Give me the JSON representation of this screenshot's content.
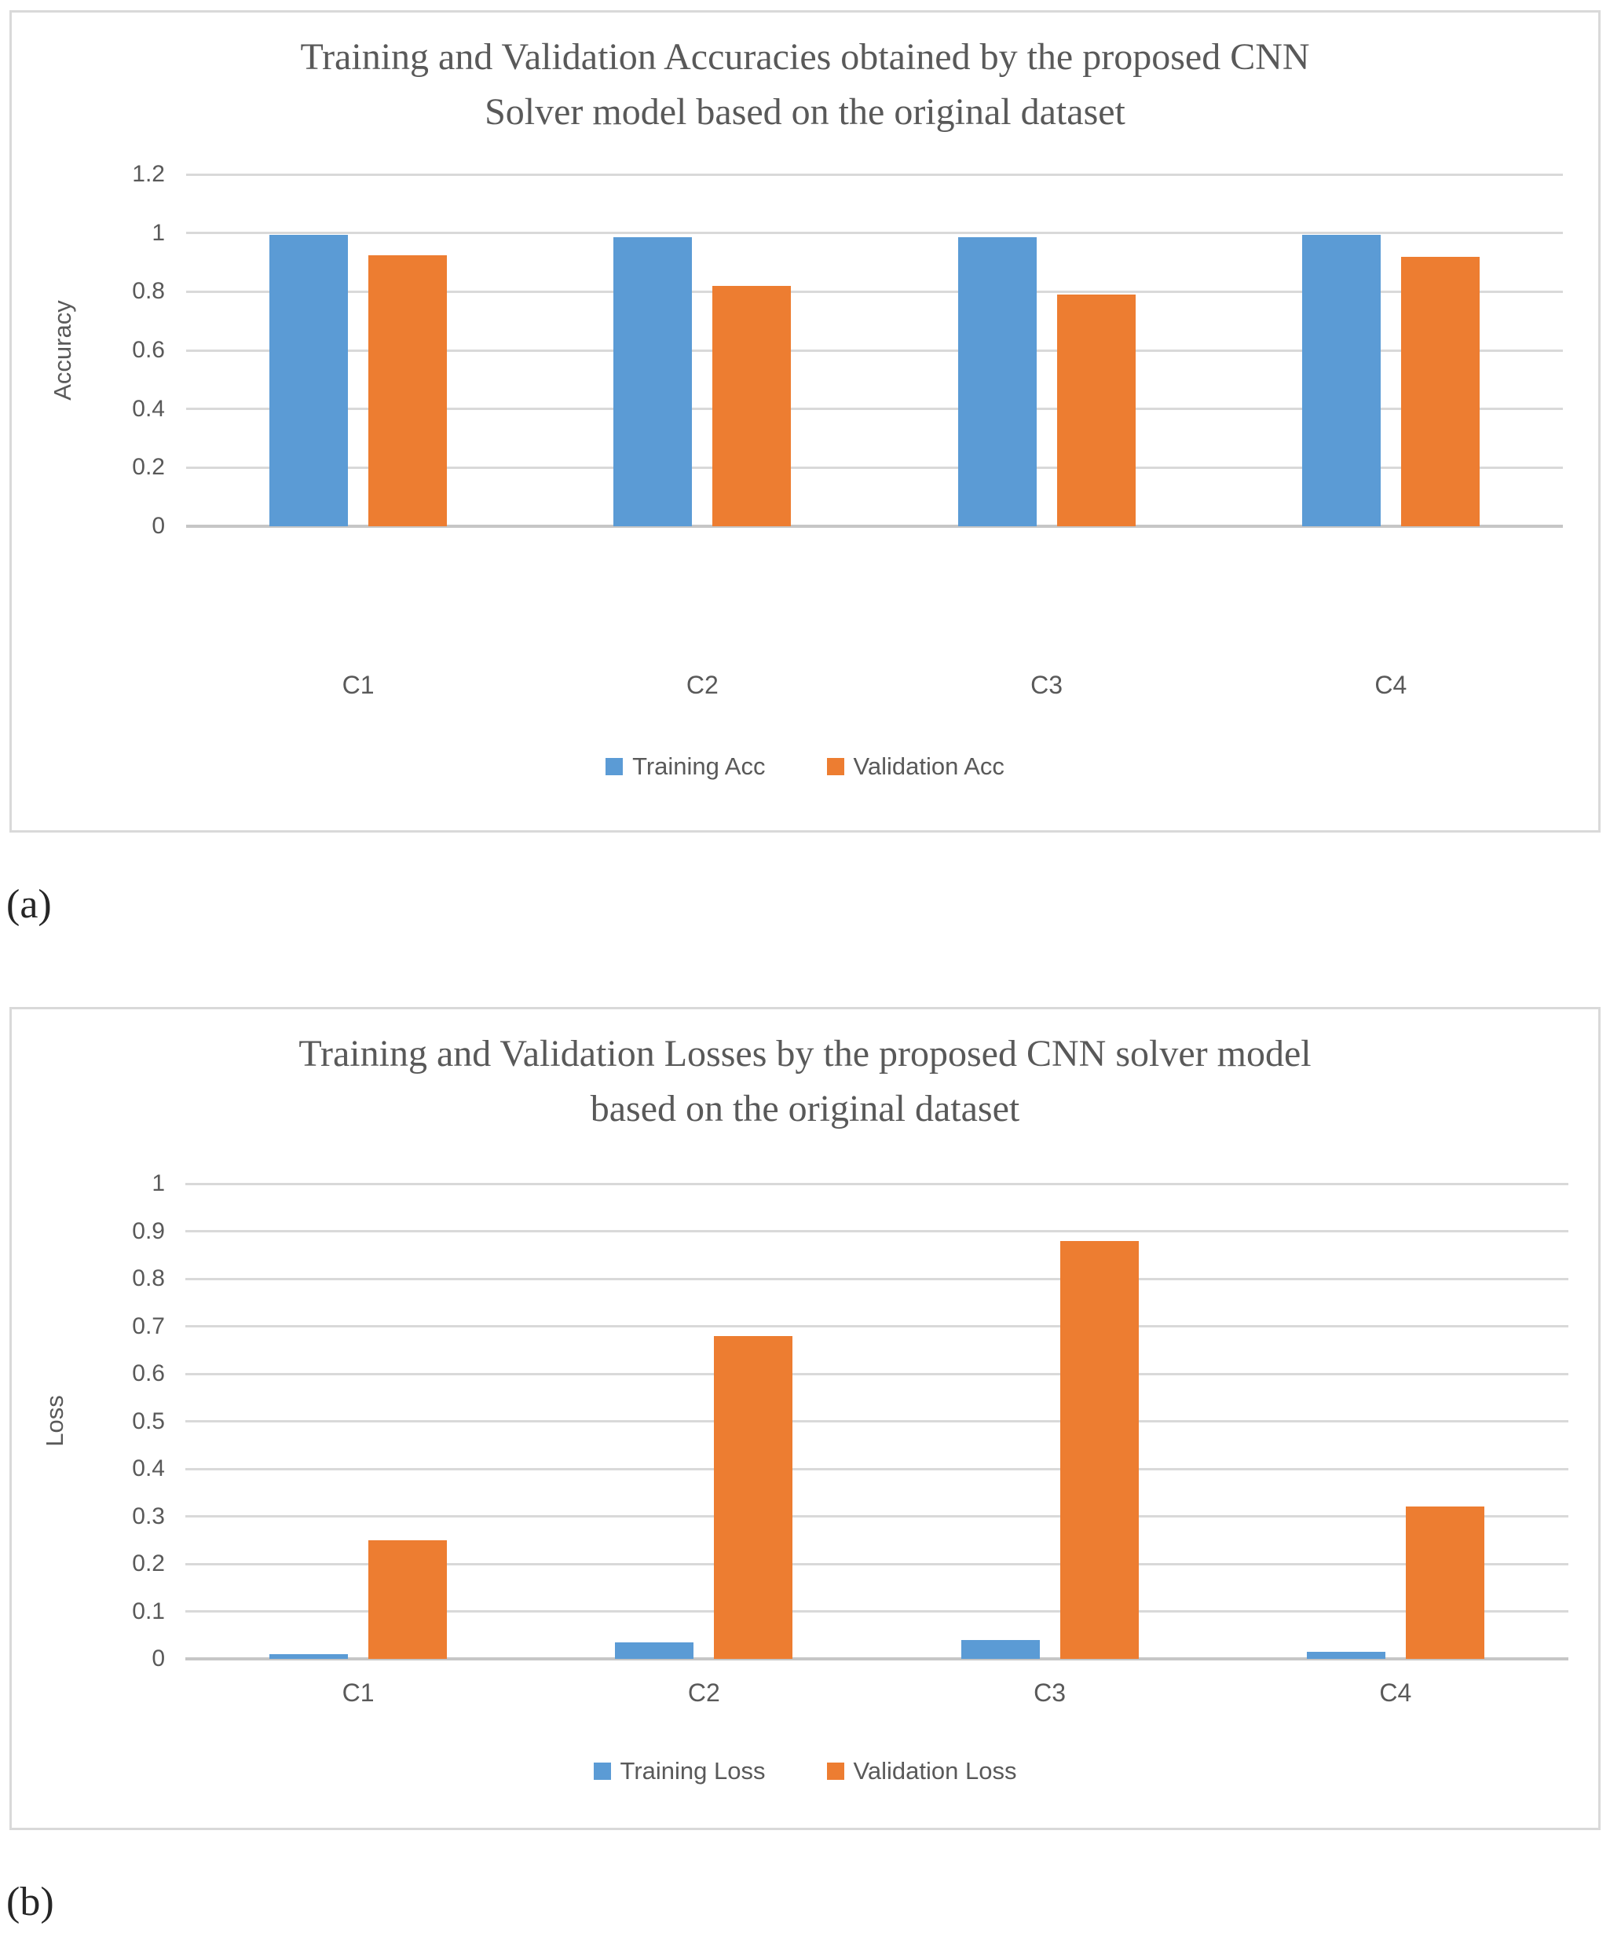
{
  "figure_labels": {
    "a": "(a)",
    "b": "(b)"
  },
  "colors": {
    "training": "#5B9BD5",
    "validation": "#ED7D31",
    "gridline": "#D9D9D9",
    "zero_line": "#C6C6C6",
    "text": "#595959",
    "panel_border": "#D9D9D9"
  },
  "chart_data": [
    {
      "type": "bar",
      "title": "Training and Validation Accuracies obtained by the proposed CNN Solver model based on the original dataset",
      "title_lines": [
        "Training and Validation Accuracies obtained by the proposed CNN",
        "Solver model based on the original dataset"
      ],
      "xlabel": "",
      "ylabel": "Accuracy",
      "ylim": [
        0,
        1.2
      ],
      "ytick_step": 0.2,
      "ytick_labels": [
        "1.2",
        "1",
        "0.8",
        "0.6",
        "0.4",
        "0.2",
        "0"
      ],
      "grid": true,
      "legend_position": "bottom",
      "categories": [
        "C1",
        "C2",
        "C3",
        "C4"
      ],
      "series": [
        {
          "name": "Training Acc",
          "color_key": "training",
          "values": [
            0.995,
            0.985,
            0.985,
            0.995
          ]
        },
        {
          "name": "Validation Acc",
          "color_key": "validation",
          "values": [
            0.925,
            0.82,
            0.79,
            0.92
          ]
        }
      ]
    },
    {
      "type": "bar",
      "title": "Training and Validation Losses by the proposed CNN solver model based on the original dataset",
      "title_lines": [
        "Training and Validation Losses by the proposed CNN solver model",
        "based on the original dataset"
      ],
      "xlabel": "",
      "ylabel": "Loss",
      "ylim": [
        0,
        1
      ],
      "ytick_step": 0.1,
      "ytick_labels": [
        "1",
        "0.9",
        "0.8",
        "0.7",
        "0.6",
        "0.5",
        "0.4",
        "0.3",
        "0.2",
        "0.1",
        "0"
      ],
      "grid": true,
      "legend_position": "bottom",
      "categories": [
        "C1",
        "C2",
        "C3",
        "C4"
      ],
      "series": [
        {
          "name": "Training Loss",
          "color_key": "training",
          "values": [
            0.01,
            0.035,
            0.04,
            0.015
          ]
        },
        {
          "name": "Validation Loss",
          "color_key": "validation",
          "values": [
            0.25,
            0.68,
            0.88,
            0.32
          ]
        }
      ]
    }
  ]
}
